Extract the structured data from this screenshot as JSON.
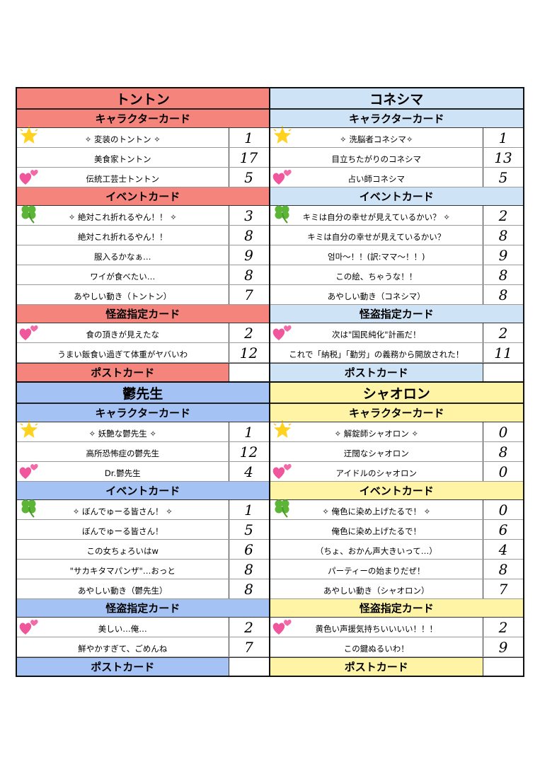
{
  "sections": [
    {
      "title": "トントン",
      "color": "#f4847c",
      "groups": [
        {
          "header": "キャラクターカード",
          "items": [
            {
              "text": "✧ 変装のトントン ✧",
              "count": "1",
              "icon": "star-icon"
            },
            {
              "text": "美食家トントン",
              "count": "17",
              "icon": ""
            },
            {
              "text": "伝統工芸士トントン",
              "count": "5",
              "icon": "two-hearts-icon"
            }
          ]
        },
        {
          "header": "イベントカード",
          "items": [
            {
              "text": "✧ 絶対これ折れるやん！！ ✧",
              "count": "3",
              "icon": "four-leaf-clover-icon"
            },
            {
              "text": "絶対これ折れるやん！！",
              "count": "8",
              "icon": ""
            },
            {
              "text": "服入るかなぁ…",
              "count": "9",
              "icon": ""
            },
            {
              "text": "ワイが食べたい…",
              "count": "8",
              "icon": ""
            },
            {
              "text": "あやしい動き（トントン）",
              "count": "7",
              "icon": ""
            }
          ]
        },
        {
          "header": "怪盗指定カード",
          "items": [
            {
              "text": "食の頂きが見えたな",
              "count": "2",
              "icon": "two-hearts-icon"
            },
            {
              "text": "うまい飯食い過ぎて体重がヤバいわ",
              "count": "12",
              "icon": ""
            }
          ]
        }
      ],
      "post": "ポストカード",
      "post_count": ""
    },
    {
      "title": "コネシマ",
      "color": "#cfe3f7",
      "groups": [
        {
          "header": "キャラクターカード",
          "items": [
            {
              "text": "✧ 洗脳者コネシマ✧",
              "count": "1",
              "icon": "star-icon"
            },
            {
              "text": "目立ちたがりのコネシマ",
              "count": "13",
              "icon": ""
            },
            {
              "text": "占い師コネシマ",
              "count": "5",
              "icon": "two-hearts-icon"
            }
          ]
        },
        {
          "header": "イベントカード",
          "items": [
            {
              "text": "キミは自分の幸せが見えているかい？ ✧",
              "count": "2",
              "icon": "four-leaf-clover-icon"
            },
            {
              "text": "キミは自分の幸せが見えているかい？",
              "count": "8",
              "icon": ""
            },
            {
              "text": "엄마～！！(訳:ママ～！！)",
              "count": "9",
              "icon": ""
            },
            {
              "text": "この絵、ちゃうな！！",
              "count": "8",
              "icon": ""
            },
            {
              "text": "あやしい動き（コネシマ）",
              "count": "8",
              "icon": ""
            }
          ]
        },
        {
          "header": "怪盗指定カード",
          "items": [
            {
              "text": "次は\"国民純化\"計画だ！",
              "count": "2",
              "icon": "two-hearts-icon"
            },
            {
              "text": "これで「納税」「勤労」の義務から開放された！",
              "count": "11",
              "icon": ""
            }
          ]
        }
      ],
      "post": "ポストカード",
      "post_count": ""
    },
    {
      "title": "鬱先生",
      "color": "#a4c2f4",
      "groups": [
        {
          "header": "キャラクターカード",
          "items": [
            {
              "text": "✧ 妖艶な鬱先生 ✧",
              "count": "1",
              "icon": "star-icon"
            },
            {
              "text": "高所恐怖症の鬱先生",
              "count": "12",
              "icon": ""
            },
            {
              "text": "Dr.鬱先生",
              "count": "4",
              "icon": "two-hearts-icon"
            }
          ]
        },
        {
          "header": "イベントカード",
          "items": [
            {
              "text": "✧ ぼんでゅーる皆さん！ ✧",
              "count": "1",
              "icon": "four-leaf-clover-icon"
            },
            {
              "text": "ぼんでゅーる皆さん！",
              "count": "5",
              "icon": ""
            },
            {
              "text": "この女ちょろいはw",
              "count": "6",
              "icon": ""
            },
            {
              "text": "\"サカキタマパンザ\"…おっと",
              "count": "8",
              "icon": ""
            },
            {
              "text": "あやしい動き（鬱先生）",
              "count": "8",
              "icon": ""
            }
          ]
        },
        {
          "header": "怪盗指定カード",
          "items": [
            {
              "text": "美しい…俺…",
              "count": "2",
              "icon": "two-hearts-icon"
            },
            {
              "text": "鮮やかすぎて、ごめんね",
              "count": "7",
              "icon": ""
            }
          ]
        }
      ],
      "post": "ポストカード",
      "post_count": ""
    },
    {
      "title": "シャオロン",
      "color": "#fff4a6",
      "groups": [
        {
          "header": "キャラクターカード",
          "items": [
            {
              "text": "✧ 解錠師シャオロン ✧",
              "count": "0",
              "icon": "star-icon"
            },
            {
              "text": "迂闊なシャオロン",
              "count": "8",
              "icon": ""
            },
            {
              "text": "アイドルのシャオロン",
              "count": "0",
              "icon": "two-hearts-icon"
            }
          ]
        },
        {
          "header": "イベントカード",
          "items": [
            {
              "text": "✧ 俺色に染め上げたるで！ ✧",
              "count": "0",
              "icon": "four-leaf-clover-icon"
            },
            {
              "text": "俺色に染め上げたるで！",
              "count": "6",
              "icon": ""
            },
            {
              "text": "（ちょ、おかん声大きいって…）",
              "count": "4",
              "icon": ""
            },
            {
              "text": "パーティーの始まりだぜ！",
              "count": "8",
              "icon": ""
            },
            {
              "text": "あやしい動き（シャオロン）",
              "count": "7",
              "icon": ""
            }
          ]
        },
        {
          "header": "怪盗指定カード",
          "items": [
            {
              "text": "黄色い声援気持ちいいいい！！！",
              "count": "2",
              "icon": "two-hearts-icon"
            },
            {
              "text": "この鍵ぬるいわ！",
              "count": "9",
              "icon": ""
            }
          ]
        }
      ],
      "post": "ポストカード",
      "post_count": ""
    }
  ]
}
